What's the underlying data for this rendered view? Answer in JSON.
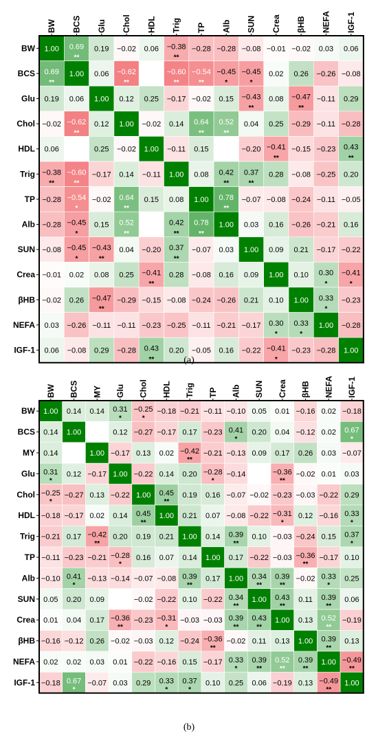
{
  "chart_data": [
    {
      "type": "heatmap",
      "panel_label": "(a)",
      "variables": [
        "BW",
        "BCS",
        "Glu",
        "Chol",
        "HDL",
        "Trig",
        "TP",
        "Alb",
        "SUN",
        "Crea",
        "βHB",
        "NEFA",
        "IGF-1"
      ],
      "values": [
        [
          "1.00",
          "0.69",
          "0.19",
          "−0.02",
          "0.06",
          "−0.38",
          "−0.28",
          "−0.28",
          "−0.08",
          "−0.01",
          "−0.02",
          "0.03",
          "0.06"
        ],
        [
          "0.69",
          "1.00",
          "0.06",
          "−0.62",
          "",
          "−0.60",
          "−0.54",
          "−0.45",
          "−0.45",
          "0.02",
          "0.26",
          "−0.26",
          "−0.08"
        ],
        [
          "0.19",
          "0.06",
          "1.00",
          "0.12",
          "0.25",
          "−0.17",
          "−0.02",
          "0.15",
          "−0.43",
          "0.08",
          "−0.47",
          "−0.11",
          "0.29"
        ],
        [
          "−0.02",
          "−0.62",
          "0.12",
          "1.00",
          "−0.02",
          "0.14",
          "0.64",
          "0.52",
          "0.04",
          "0.25",
          "−0.29",
          "−0.11",
          "−0.28"
        ],
        [
          "0.06",
          "",
          "0.25",
          "−0.02",
          "1.00",
          "−0.11",
          "0.15",
          "",
          "−0.20",
          "−0.41",
          "−0.15",
          "−0.23",
          "0.43"
        ],
        [
          "−0.38",
          "−0.60",
          "−0.17",
          "0.14",
          "−0.11",
          "1.00",
          "0.08",
          "0.42",
          "0.37",
          "0.28",
          "−0.08",
          "−0.25",
          "0.20"
        ],
        [
          "−0.28",
          "−0.54",
          "−0.02",
          "0.64",
          "0.15",
          "0.08",
          "1.00",
          "0.78",
          "−0.07",
          "−0.08",
          "−0.24",
          "−0.11",
          "−0.05"
        ],
        [
          "−0.28",
          "−0.45",
          "0.15",
          "0.52",
          "",
          "0.42",
          "0.78",
          "1.00",
          "0.03",
          "0.16",
          "−0.26",
          "−0.21",
          "0.16"
        ],
        [
          "−0.08",
          "−0.45",
          "−0.43",
          "0.04",
          "−0.20",
          "0.37",
          "−0.07",
          "0.03",
          "1.00",
          "0.09",
          "0.21",
          "−0.17",
          "−0.22"
        ],
        [
          "−0.01",
          "0.02",
          "0.08",
          "0.25",
          "−0.41",
          "0.28",
          "−0.08",
          "0.16",
          "0.09",
          "1.00",
          "0.10",
          "0.30",
          "−0.41"
        ],
        [
          "−0.02",
          "0.26",
          "−0.47",
          "−0.29",
          "−0.15",
          "−0.08",
          "−0.24",
          "−0.26",
          "0.21",
          "0.10",
          "1.00",
          "0.33",
          "−0.23"
        ],
        [
          "0.03",
          "−0.26",
          "−0.11",
          "−0.11",
          "−0.23",
          "−0.25",
          "−0.11",
          "−0.21",
          "−0.17",
          "0.30",
          "0.33",
          "1.00",
          "−0.28"
        ],
        [
          "0.06",
          "−0.08",
          "0.29",
          "−0.28",
          "0.43",
          "0.20",
          "−0.05",
          "0.16",
          "−0.22",
          "−0.41",
          "−0.23",
          "−0.28",
          "1.00"
        ]
      ],
      "significance": [
        [
          "",
          "**",
          "",
          "",
          "",
          "**",
          "",
          "",
          "",
          "",
          "",
          "",
          ""
        ],
        [
          "**",
          "",
          "",
          "**",
          "",
          "**",
          "**",
          "*",
          "*",
          "",
          "",
          "",
          ""
        ],
        [
          "",
          "",
          "",
          "",
          "",
          "",
          "",
          "",
          "**",
          "",
          "**",
          "",
          ""
        ],
        [
          "",
          "**",
          "",
          "",
          "",
          "",
          "**",
          "**",
          "",
          "",
          "",
          "",
          ""
        ],
        [
          "",
          "",
          "",
          "",
          "",
          "",
          "",
          "",
          "",
          "**",
          "",
          "",
          "**"
        ],
        [
          "**",
          "**",
          "",
          "",
          "",
          "",
          "",
          "**",
          "**",
          "",
          "",
          "",
          ""
        ],
        [
          "",
          "*",
          "",
          "**",
          "",
          "",
          "",
          "**",
          "",
          "",
          "",
          "",
          ""
        ],
        [
          "",
          "*",
          "",
          "**",
          "",
          "**",
          "**",
          "",
          "",
          "",
          "",
          "",
          ""
        ],
        [
          "",
          "*",
          "**",
          "",
          "",
          "**",
          "",
          "",
          "",
          "",
          "",
          "",
          ""
        ],
        [
          "",
          "",
          "",
          "",
          "**",
          "",
          "",
          "",
          "",
          "",
          "",
          "*",
          "*"
        ],
        [
          "",
          "",
          "**",
          "",
          "",
          "",
          "",
          "",
          "",
          "",
          "",
          "*",
          ""
        ],
        [
          "",
          "",
          "",
          "",
          "",
          "",
          "",
          "",
          "",
          "*",
          "*",
          "",
          ""
        ],
        [
          "",
          "",
          "",
          "",
          "**",
          "",
          "",
          "",
          "",
          "*",
          "",
          "",
          ""
        ]
      ]
    },
    {
      "type": "heatmap",
      "panel_label": "(b)",
      "variables": [
        "BW",
        "BCS",
        "MY",
        "Glu",
        "Chol",
        "HDL",
        "Trig",
        "TP",
        "Alb",
        "SUN",
        "Crea",
        "βHB",
        "NEFA",
        "IGF-1"
      ],
      "values": [
        [
          "1.00",
          "0.14",
          "0.14",
          "0.31",
          "−0.25",
          "−0.18",
          "−0.21",
          "−0.11",
          "−0.10",
          "0.05",
          "0.01",
          "−0.16",
          "0.02",
          "−0.18"
        ],
        [
          "0.14",
          "1.00",
          "",
          "0.12",
          "−0.27",
          "−0.17",
          "0.17",
          "−0.23",
          "0.41",
          "0.20",
          "0.04",
          "−0.12",
          "0.02",
          "0.67"
        ],
        [
          "0.14",
          "",
          "1.00",
          "−0.17",
          "0.13",
          "0.02",
          "−0.42",
          "−0.21",
          "−0.13",
          "0.09",
          "0.17",
          "0.26",
          "0.03",
          "−0.07"
        ],
        [
          "0.31",
          "0.12",
          "−0.17",
          "1.00",
          "−0.22",
          "0.14",
          "0.20",
          "−0.28",
          "−0.14",
          "",
          "−0.36",
          "−0.02",
          "0.01",
          "0.03"
        ],
        [
          "−0.25",
          "−0.27",
          "0.13",
          "−0.22",
          "1.00",
          "0.45",
          "0.19",
          "0.16",
          "−0.07",
          "−0.02",
          "−0.23",
          "−0.03",
          "−0.22",
          "0.29"
        ],
        [
          "−0.18",
          "−0.17",
          "0.02",
          "0.14",
          "0.45",
          "1.00",
          "0.21",
          "0.07",
          "−0.08",
          "−0.22",
          "−0.31",
          "0.12",
          "−0.16",
          "0.33"
        ],
        [
          "−0.21",
          "0.17",
          "−0.42",
          "0.20",
          "0.19",
          "0.21",
          "1.00",
          "0.14",
          "0.39",
          "0.10",
          "−0.03",
          "−0.24",
          "0.15",
          "0.37"
        ],
        [
          "−0.11",
          "−0.23",
          "−0.21",
          "−0.28",
          "0.16",
          "0.07",
          "0.14",
          "1.00",
          "0.17",
          "−0.22",
          "−0.03",
          "−0.36",
          "−0.17",
          "0.10"
        ],
        [
          "−0.10",
          "0.41",
          "−0.13",
          "−0.14",
          "−0.07",
          "−0.08",
          "0.39",
          "0.17",
          "1.00",
          "0.34",
          "0.39",
          "−0.02",
          "0.33",
          "0.25"
        ],
        [
          "0.05",
          "0.20",
          "0.09",
          "",
          "−0.02",
          "−0.22",
          "0.10",
          "−0.22",
          "0.34",
          "1.00",
          "0.43",
          "0.11",
          "0.39",
          "0.06"
        ],
        [
          "0.01",
          "0.04",
          "0.17",
          "−0.36",
          "−0.23",
          "−0.31",
          "−0.03",
          "−0.03",
          "0.39",
          "0.43",
          "1.00",
          "0.13",
          "0.52",
          "−0.19"
        ],
        [
          "−0.16",
          "−0.12",
          "0.26",
          "−0.02",
          "−0.03",
          "0.12",
          "−0.24",
          "−0.36",
          "−0.02",
          "0.11",
          "0.13",
          "1.00",
          "0.39",
          "0.13"
        ],
        [
          "0.02",
          "0.02",
          "0.03",
          "0.01",
          "−0.22",
          "−0.16",
          "0.15",
          "−0.17",
          "0.33",
          "0.39",
          "0.52",
          "0.39",
          "1.00",
          "−0.49"
        ],
        [
          "−0.18",
          "0.67",
          "−0.07",
          "0.03",
          "0.29",
          "0.33",
          "0.37",
          "0.10",
          "0.25",
          "0.06",
          "−0.19",
          "0.13",
          "−0.49",
          "1.00"
        ]
      ],
      "significance": [
        [
          "",
          "",
          "",
          "*",
          "*",
          "",
          "",
          "",
          "",
          "",
          "",
          "",
          "",
          ""
        ],
        [
          "",
          "",
          "",
          "",
          "",
          "",
          "",
          "",
          "*",
          "",
          "",
          "",
          "",
          "*"
        ],
        [
          "",
          "",
          "",
          "",
          "",
          "",
          "**",
          "",
          "",
          "",
          "",
          "",
          "",
          ""
        ],
        [
          "*",
          "",
          "",
          "",
          "",
          "",
          "",
          "*",
          "",
          "",
          "**",
          "",
          "",
          ""
        ],
        [
          "*",
          "",
          "",
          "",
          "",
          "**",
          "",
          "",
          "",
          "",
          "",
          "",
          "",
          ""
        ],
        [
          "",
          "",
          "",
          "",
          "**",
          "",
          "",
          "",
          "",
          "",
          "*",
          "",
          "",
          "*"
        ],
        [
          "",
          "",
          "**",
          "",
          "",
          "",
          "",
          "",
          "**",
          "",
          "",
          "",
          "",
          "*"
        ],
        [
          "",
          "",
          "",
          "*",
          "",
          "",
          "",
          "",
          "",
          "",
          "",
          "**",
          "",
          ""
        ],
        [
          "",
          "*",
          "",
          "",
          "",
          "",
          "**",
          "",
          "",
          "**",
          "**",
          "",
          "*",
          ""
        ],
        [
          "",
          "",
          "",
          "",
          "",
          "",
          "",
          "",
          "**",
          "",
          "**",
          "",
          "**",
          ""
        ],
        [
          "",
          "",
          "",
          "**",
          "",
          "*",
          "",
          "",
          "**",
          "**",
          "",
          "",
          "**",
          ""
        ],
        [
          "",
          "",
          "",
          "",
          "",
          "",
          "",
          "**",
          "",
          "",
          "",
          "",
          "**",
          ""
        ],
        [
          "",
          "",
          "",
          "",
          "",
          "",
          "",
          "",
          "*",
          "**",
          "**",
          "**",
          "",
          "**"
        ],
        [
          "",
          "*",
          "",
          "",
          "",
          "*",
          "*",
          "",
          "",
          "",
          "",
          "",
          "**",
          ""
        ]
      ]
    }
  ],
  "colors": {
    "positive_strong": "#008000",
    "negative_strong": "#e8191f",
    "neutral": "#ffffff"
  }
}
